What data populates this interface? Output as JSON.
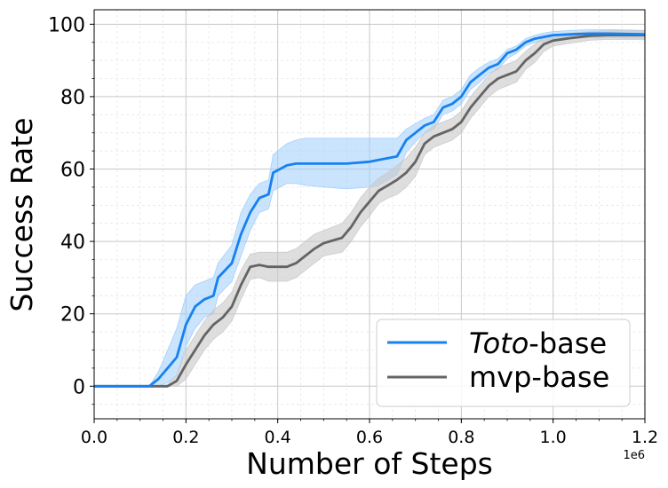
{
  "chart_data": {
    "type": "line",
    "xlabel": "Number of Steps",
    "ylabel": "Success Rate",
    "x_multiplier_label": "1e6",
    "xlim": [
      0,
      1.2
    ],
    "ylim": [
      -9,
      104
    ],
    "x_ticks": [
      0.0,
      0.2,
      0.4,
      0.6,
      0.8,
      1.0,
      1.2
    ],
    "x_tick_labels": [
      "0.0",
      "0.2",
      "0.4",
      "0.6",
      "0.8",
      "1.0",
      "1.2"
    ],
    "y_ticks": [
      0,
      20,
      40,
      60,
      80,
      100
    ],
    "y_tick_labels": [
      "0",
      "20",
      "40",
      "60",
      "80",
      "100"
    ],
    "grid": true,
    "legend_position": "bottom-right",
    "series": [
      {
        "name_italic": "Toto",
        "name_suffix": "-base",
        "color": "#1681f0",
        "band_color": "#9fcdfb",
        "x": [
          0,
          0.12,
          0.14,
          0.16,
          0.18,
          0.2,
          0.22,
          0.24,
          0.26,
          0.27,
          0.3,
          0.32,
          0.34,
          0.36,
          0.38,
          0.39,
          0.42,
          0.44,
          0.46,
          0.5,
          0.55,
          0.6,
          0.62,
          0.64,
          0.66,
          0.68,
          0.7,
          0.72,
          0.74,
          0.76,
          0.78,
          0.8,
          0.82,
          0.84,
          0.86,
          0.88,
          0.9,
          0.92,
          0.94,
          0.96,
          0.98,
          1.0,
          1.04,
          1.08,
          1.12,
          1.16,
          1.2
        ],
        "y": [
          0,
          0,
          2,
          5,
          8,
          17,
          22,
          24,
          25,
          30,
          34,
          42,
          48,
          52,
          53,
          59,
          61,
          61.5,
          61.5,
          61.5,
          61.5,
          62,
          62.5,
          63,
          63.5,
          68,
          70,
          72,
          73,
          77,
          78,
          80,
          84,
          86,
          88,
          89,
          92,
          93,
          95,
          96,
          96.5,
          97,
          97.2,
          97.4,
          97.4,
          97.3,
          97.2
        ],
        "upper": [
          0,
          0,
          4,
          10,
          16,
          25,
          28,
          29,
          30,
          34,
          39,
          48,
          53,
          56,
          57,
          64,
          67,
          68,
          68.5,
          68.5,
          68.5,
          68.5,
          68.5,
          68.5,
          68.5,
          71,
          72.5,
          74,
          75,
          79,
          80,
          82,
          86,
          88,
          89.5,
          90.5,
          93,
          94,
          96,
          97,
          97.6,
          98,
          98.3,
          98.5,
          98.5,
          98.4,
          98.3
        ],
        "lower": [
          0,
          0,
          0,
          1,
          3,
          11,
          16,
          19,
          20,
          25,
          29,
          36,
          43,
          48,
          49,
          54,
          56,
          56,
          55.5,
          55,
          54.5,
          55,
          55.5,
          57,
          58.5,
          64.5,
          67.5,
          70,
          71,
          75,
          76,
          78,
          82,
          84,
          86.5,
          87.5,
          90.5,
          92,
          94,
          95,
          95.4,
          96,
          96.2,
          96.3,
          96.3,
          96.2,
          96.1
        ]
      },
      {
        "name": "mvp-base",
        "color": "#646464",
        "band_color": "#c8c8c8",
        "x": [
          0,
          0.15,
          0.16,
          0.18,
          0.2,
          0.22,
          0.24,
          0.26,
          0.28,
          0.3,
          0.32,
          0.34,
          0.36,
          0.38,
          0.42,
          0.44,
          0.46,
          0.48,
          0.5,
          0.54,
          0.56,
          0.58,
          0.6,
          0.62,
          0.64,
          0.66,
          0.68,
          0.7,
          0.72,
          0.74,
          0.76,
          0.78,
          0.8,
          0.82,
          0.84,
          0.86,
          0.88,
          0.9,
          0.92,
          0.94,
          0.96,
          0.98,
          1.0,
          1.04,
          1.08,
          1.12,
          1.16,
          1.2
        ],
        "y": [
          0,
          0,
          0,
          1.5,
          6,
          10,
          14,
          17,
          19,
          22,
          28,
          33,
          33.5,
          33,
          33,
          34,
          36,
          38,
          39.5,
          41,
          44,
          48,
          51,
          54,
          55.5,
          57,
          59,
          62,
          67,
          69,
          70,
          71,
          73,
          77,
          80,
          83,
          85,
          86,
          87,
          90,
          92,
          94.5,
          95.5,
          96.2,
          96.8,
          97,
          97,
          97
        ],
        "upper": [
          0,
          0,
          0.5,
          3,
          10,
          14,
          18,
          21,
          23,
          26,
          32,
          36.5,
          37,
          37,
          37,
          38,
          40,
          42,
          43,
          45,
          48,
          52,
          55,
          57.5,
          59,
          61,
          63,
          66,
          70,
          72,
          73,
          74,
          76,
          80,
          83,
          86,
          88,
          89,
          90,
          92.5,
          94.5,
          96.5,
          97,
          97.6,
          98,
          98.2,
          98.2,
          98.2
        ],
        "lower": [
          0,
          0,
          0,
          0,
          2,
          6,
          10,
          13,
          15,
          18,
          24,
          29.5,
          30,
          29,
          29,
          30,
          32,
          34,
          36,
          37,
          40,
          44,
          47,
          50.5,
          52,
          53,
          55,
          58,
          64,
          66,
          67,
          68,
          70,
          74,
          77,
          80,
          82,
          83,
          84,
          87.5,
          89.5,
          92.5,
          94,
          94.8,
          95.6,
          95.8,
          95.8,
          95.8
        ]
      }
    ]
  }
}
